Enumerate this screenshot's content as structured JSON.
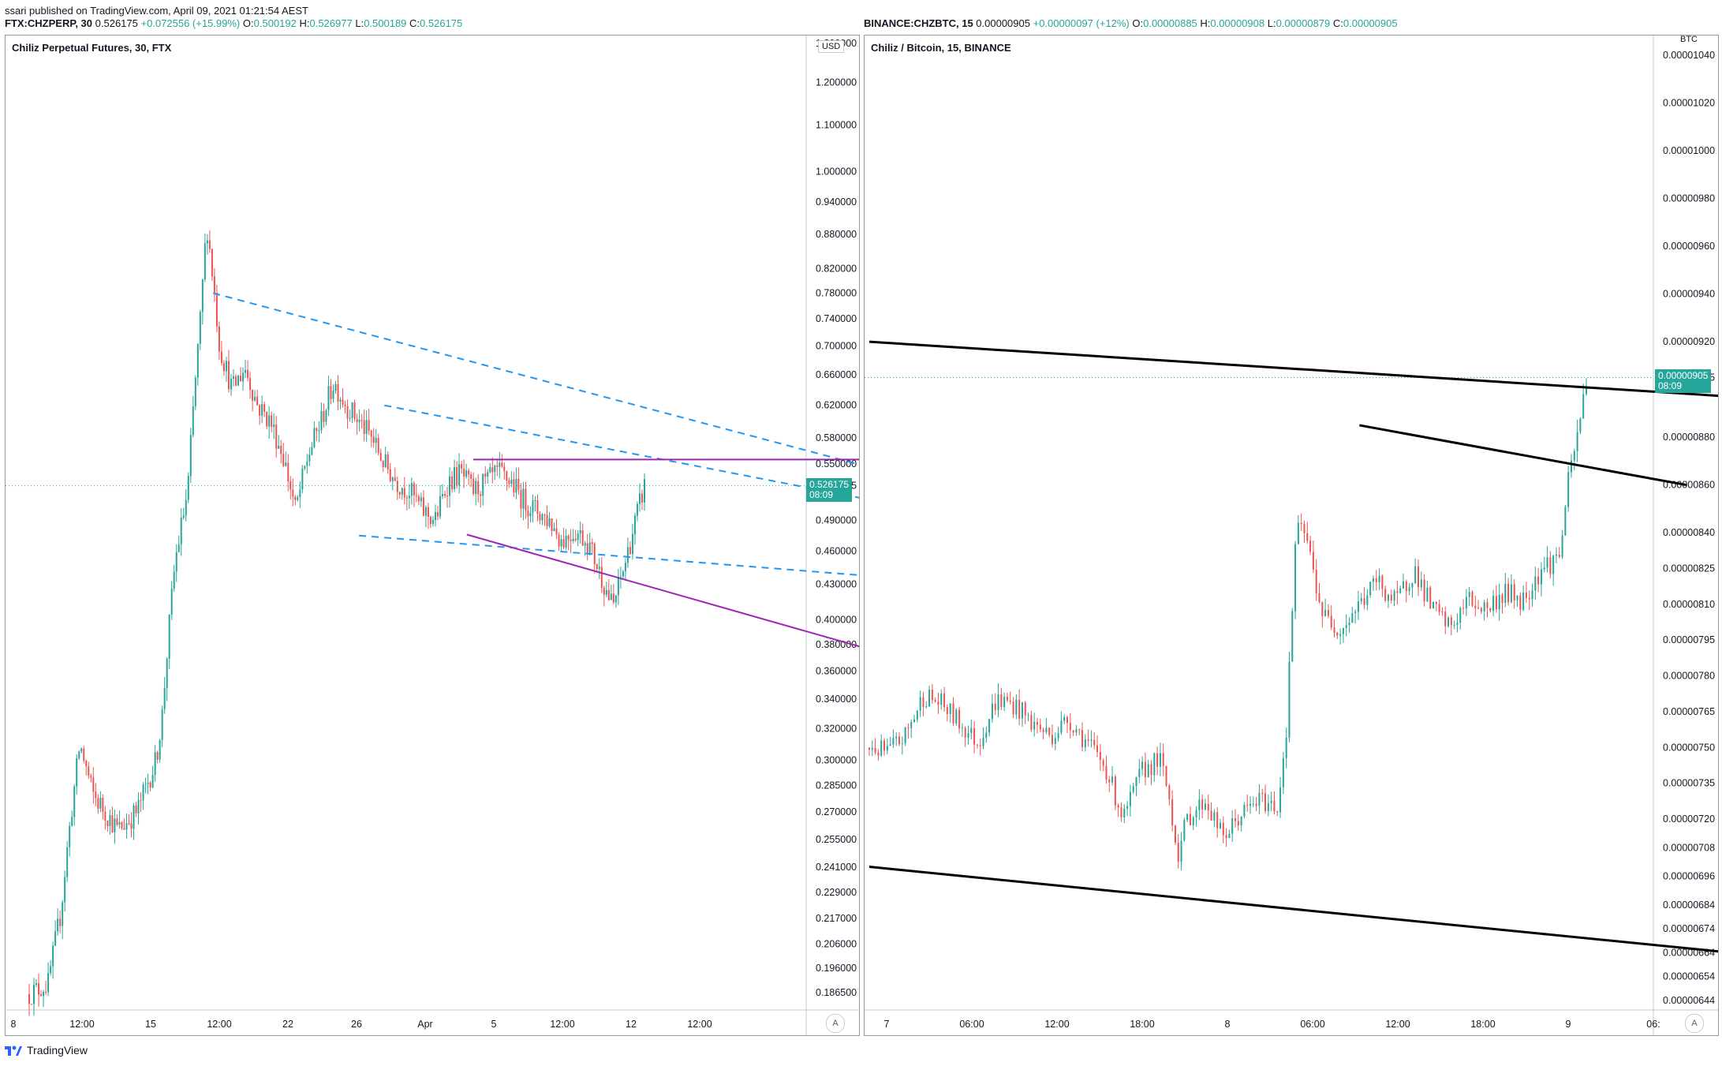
{
  "publisher": "ssari published on TradingView.com, April 09, 2021 01:21:54 AEST",
  "colors": {
    "up": "#26a69a",
    "down": "#ef5350",
    "blue": "#2196f3",
    "purple": "#9c27b0",
    "black": "#000000"
  },
  "left": {
    "symbol": "FTX:CHZPERP, 30",
    "price": "0.526175",
    "change": "+0.072556 (+15.99%)",
    "o": "0.500192",
    "h": "0.526977",
    "l": "0.500189",
    "c": "0.526175",
    "title": "Chiliz Perpetual Futures, 30, FTX",
    "currency": "USD",
    "last_price": "0.526175",
    "countdown": "08:09",
    "auto": "A"
  },
  "right": {
    "symbol": "BINANCE:CHZBTC, 15",
    "price": "0.00000905",
    "change": "+0.00000097 (+12%)",
    "o": "0.00000885",
    "h": "0.00000908",
    "l": "0.00000879",
    "c": "0.00000905",
    "title": "Chiliz / Bitcoin, 15, BINANCE",
    "currency": "BTC",
    "last_price": "0.00000905",
    "countdown": "08:09",
    "auto": "A"
  },
  "footer": {
    "brand": "TradingView"
  },
  "chart_data": [
    {
      "type": "candlestick",
      "title": "Chiliz Perpetual Futures, 30, FTX",
      "scale": "log",
      "ylim": [
        0.18,
        1.3
      ],
      "y_ticks": [
        "1.300000",
        "1.200000",
        "1.100000",
        "1.000000",
        "0.940000",
        "0.880000",
        "0.820000",
        "0.780000",
        "0.740000",
        "0.700000",
        "0.660000",
        "0.620000",
        "0.580000",
        "0.550000",
        "0.526175",
        "0.490000",
        "0.460000",
        "0.430000",
        "0.400000",
        "0.380000",
        "0.360000",
        "0.340000",
        "0.320000",
        "0.300000",
        "0.285000",
        "0.270000",
        "0.255000",
        "0.241000",
        "0.229000",
        "0.217000",
        "0.206000",
        "0.196000",
        "0.186500"
      ],
      "x_ticks": [
        "8",
        "12:00",
        "15",
        "12:00",
        "22",
        "26",
        "Apr",
        "5",
        "12:00",
        "12",
        "12:00"
      ],
      "price_path": [
        [
          0,
          0.186
        ],
        [
          3,
          0.19
        ],
        [
          5,
          0.22
        ],
        [
          8,
          0.31
        ],
        [
          10,
          0.28
        ],
        [
          12,
          0.27
        ],
        [
          14,
          0.26
        ],
        [
          17,
          0.27
        ],
        [
          20,
          0.3
        ],
        [
          21,
          0.33
        ],
        [
          23,
          0.45
        ],
        [
          25,
          0.52
        ],
        [
          27,
          0.74
        ],
        [
          28,
          0.9
        ],
        [
          30,
          0.7
        ],
        [
          32,
          0.64
        ],
        [
          34,
          0.67
        ],
        [
          36,
          0.62
        ],
        [
          38,
          0.6
        ],
        [
          40,
          0.56
        ],
        [
          42,
          0.5
        ],
        [
          44,
          0.56
        ],
        [
          46,
          0.6
        ],
        [
          48,
          0.65
        ],
        [
          50,
          0.62
        ],
        [
          52,
          0.6
        ],
        [
          54,
          0.58
        ],
        [
          56,
          0.55
        ],
        [
          58,
          0.53
        ],
        [
          60,
          0.52
        ],
        [
          62,
          0.5
        ],
        [
          64,
          0.49
        ],
        [
          66,
          0.53
        ],
        [
          68,
          0.54
        ],
        [
          70,
          0.52
        ],
        [
          72,
          0.53
        ],
        [
          74,
          0.54
        ],
        [
          76,
          0.53
        ],
        [
          78,
          0.51
        ],
        [
          80,
          0.5
        ],
        [
          82,
          0.49
        ],
        [
          84,
          0.47
        ],
        [
          86,
          0.48
        ],
        [
          88,
          0.47
        ],
        [
          90,
          0.44
        ],
        [
          92,
          0.41
        ],
        [
          94,
          0.45
        ],
        [
          96,
          0.5
        ],
        [
          97,
          0.526
        ]
      ],
      "trendlines": [
        {
          "color": "blue",
          "dash": true,
          "from": [
            29,
            0.78
          ],
          "to": [
            175,
            0.472
          ]
        },
        {
          "color": "blue",
          "dash": true,
          "from": [
            56,
            0.62
          ],
          "to": [
            170,
            0.465
          ]
        },
        {
          "color": "blue",
          "dash": true,
          "from": [
            52,
            0.475
          ],
          "to": [
            165,
            0.423
          ]
        },
        {
          "color": "purple",
          "dash": false,
          "from": [
            70,
            0.555
          ],
          "to": [
            166,
            0.555
          ]
        },
        {
          "color": "purple",
          "dash": false,
          "from": [
            69,
            0.476
          ],
          "to": [
            156,
            0.345
          ]
        }
      ]
    },
    {
      "type": "candlestick",
      "title": "Chiliz / Bitcoin, 15, BINANCE",
      "ylim": [
        6.4e-06,
        1.045e-05
      ],
      "y_ticks": [
        "0.00001040",
        "0.00001020",
        "0.00001000",
        "0.00000980",
        "0.00000960",
        "0.00000940",
        "0.00000920",
        "0.00000905",
        "0.00000880",
        "0.00000860",
        "0.00000840",
        "0.00000825",
        "0.00000810",
        "0.00000795",
        "0.00000780",
        "0.00000765",
        "0.00000750",
        "0.00000735",
        "0.00000720",
        "0.00000708",
        "0.00000696",
        "0.00000684",
        "0.00000674",
        "0.00000664",
        "0.00000654",
        "0.00000644"
      ],
      "x_ticks": [
        "7",
        "06:00",
        "12:00",
        "18:00",
        "8",
        "06:00",
        "12:00",
        "18:00",
        "9",
        "06:"
      ],
      "price_path": [
        [
          0,
          7.5e-06
        ],
        [
          4,
          7.48e-06
        ],
        [
          8,
          7.55e-06
        ],
        [
          12,
          7.72e-06
        ],
        [
          16,
          7.68e-06
        ],
        [
          20,
          7.6e-06
        ],
        [
          24,
          7.52e-06
        ],
        [
          28,
          7.7e-06
        ],
        [
          32,
          7.68e-06
        ],
        [
          36,
          7.6e-06
        ],
        [
          40,
          7.55e-06
        ],
        [
          44,
          7.62e-06
        ],
        [
          48,
          7.52e-06
        ],
        [
          52,
          7.42e-06
        ],
        [
          56,
          7.2e-06
        ],
        [
          60,
          7.4e-06
        ],
        [
          64,
          7.45e-06
        ],
        [
          66,
          7.3e-06
        ],
        [
          68,
          7.05e-06
        ],
        [
          70,
          7.2e-06
        ],
        [
          74,
          7.28e-06
        ],
        [
          78,
          7.12e-06
        ],
        [
          82,
          7.22e-06
        ],
        [
          86,
          7.28e-06
        ],
        [
          90,
          7.25e-06
        ],
        [
          92,
          7.6e-06
        ],
        [
          94,
          8.4e-06
        ],
        [
          96,
          8.4e-06
        ],
        [
          100,
          8.05e-06
        ],
        [
          104,
          8e-06
        ],
        [
          108,
          8.1e-06
        ],
        [
          112,
          8.2e-06
        ],
        [
          116,
          8.1e-06
        ],
        [
          120,
          8.25e-06
        ],
        [
          124,
          8.08e-06
        ],
        [
          128,
          8e-06
        ],
        [
          132,
          8.12e-06
        ],
        [
          136,
          8.08e-06
        ],
        [
          140,
          8.15e-06
        ],
        [
          144,
          8.12e-06
        ],
        [
          148,
          8.25e-06
        ],
        [
          152,
          8.3e-06
        ],
        [
          154,
          8.6e-06
        ],
        [
          156,
          8.8e-06
        ],
        [
          158,
          9.05e-06
        ]
      ],
      "trendlines": [
        {
          "color": "black",
          "from": [
            0,
            9.2e-06
          ],
          "to": [
            190,
            8.97e-06
          ]
        },
        {
          "color": "black",
          "from": [
            108,
            8.85e-06
          ],
          "to": [
            180,
            8.6e-06
          ]
        },
        {
          "color": "black",
          "from": [
            0,
            7e-06
          ],
          "to": [
            190,
            6.64e-06
          ]
        }
      ]
    }
  ]
}
